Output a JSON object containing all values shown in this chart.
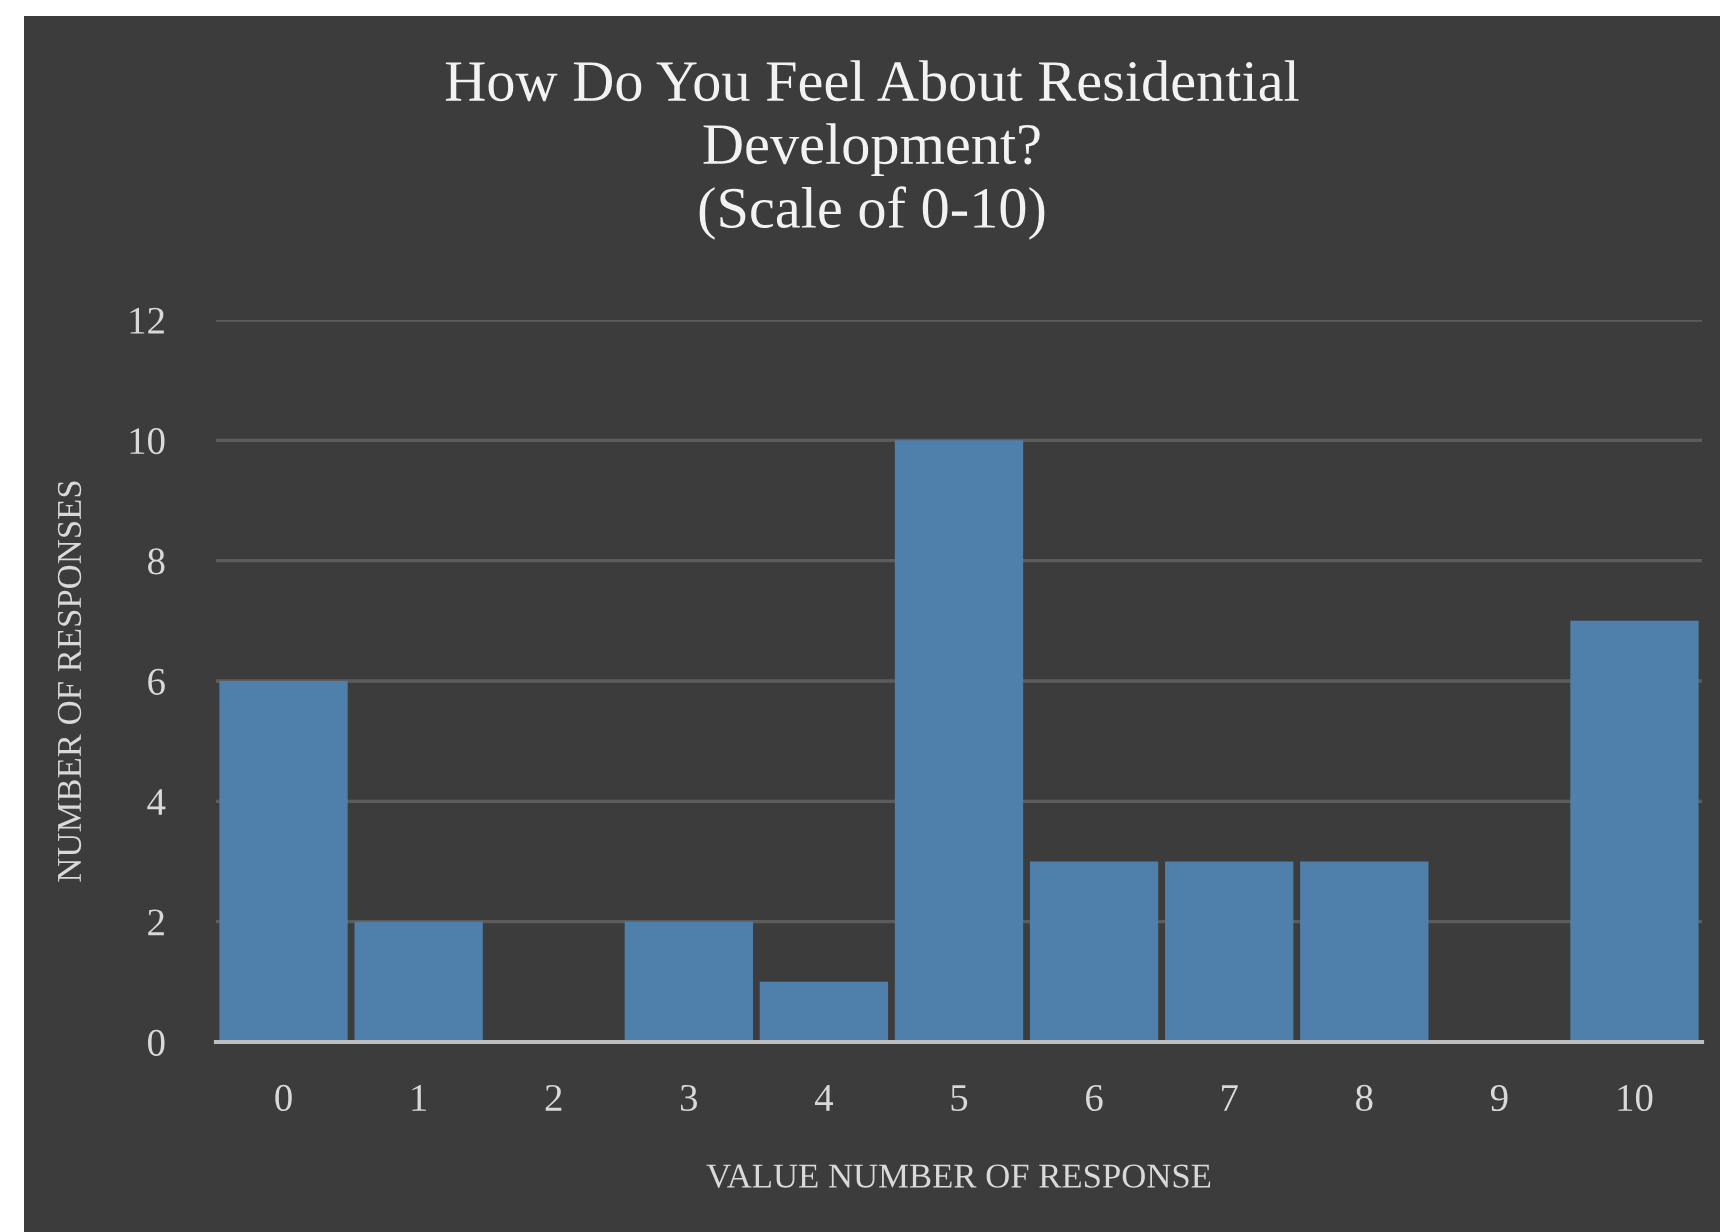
{
  "chart_data": {
    "type": "bar",
    "title": "How Do You Feel About Residential\nDevelopment?\n(Scale of 0-10)",
    "xlabel": "VALUE NUMBER OF RESPONSE",
    "ylabel": "NUMBER OF RESPONSES",
    "categories": [
      "0",
      "1",
      "2",
      "3",
      "4",
      "5",
      "6",
      "7",
      "8",
      "9",
      "10"
    ],
    "values": [
      6,
      2,
      0,
      2,
      1,
      10,
      3,
      3,
      3,
      0,
      7
    ],
    "color": "#4f7fab",
    "ylim": [
      0,
      12
    ],
    "yticks": [
      0,
      2,
      4,
      6,
      8,
      10,
      12
    ],
    "grid": "y"
  }
}
